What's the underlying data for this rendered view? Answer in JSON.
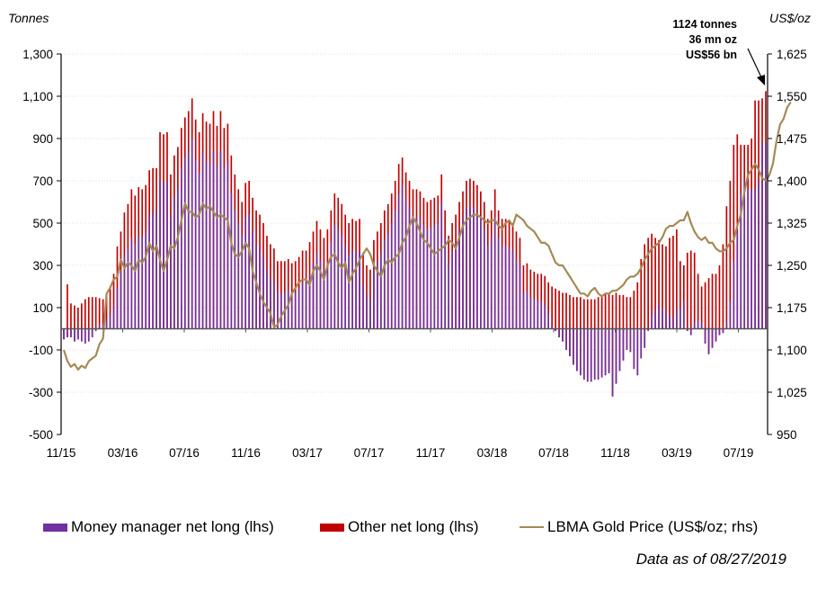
{
  "chart_data": {
    "type": "bar+line",
    "left_unit": "Tonnes",
    "right_unit": "US$/oz",
    "left_ticks": [
      "1,300",
      "1,100",
      "900",
      "700",
      "500",
      "300",
      "100",
      "-100",
      "-300",
      "-500"
    ],
    "right_ticks": [
      "1,625",
      "1,550",
      "1,475",
      "1,400",
      "1,325",
      "1,250",
      "1,175",
      "1,100",
      "1,025",
      "950"
    ],
    "ylim_left": [
      -500,
      1300
    ],
    "ylim_right": [
      950,
      1625
    ],
    "x_ticks": [
      "11/15",
      "03/16",
      "07/16",
      "11/16",
      "03/17",
      "07/17",
      "11/17",
      "03/18",
      "07/18",
      "11/18",
      "03/19",
      "07/19"
    ],
    "annotation": {
      "line1": "1124 tonnes",
      "line2": "36 mn oz",
      "line3": "US$56 bn"
    },
    "series": [
      {
        "name": "Money manager net long (lhs)",
        "color": "#7030a0",
        "kind": "bar",
        "axis": "left"
      },
      {
        "name": "Other net long (lhs)",
        "color": "#c00000",
        "kind": "bar",
        "axis": "left"
      },
      {
        "name": "LBMA Gold Price (US$/oz; rhs)",
        "color": "#a48a56",
        "kind": "line",
        "axis": "right"
      }
    ],
    "total_net_long": [
      -10,
      210,
      120,
      110,
      100,
      120,
      140,
      150,
      150,
      150,
      145,
      140,
      160,
      200,
      260,
      390,
      460,
      550,
      590,
      660,
      630,
      670,
      660,
      680,
      750,
      760,
      760,
      930,
      920,
      930,
      730,
      820,
      860,
      950,
      1000,
      1030,
      1090,
      990,
      930,
      1020,
      980,
      970,
      1030,
      960,
      1030,
      950,
      970,
      820,
      730,
      660,
      600,
      690,
      700,
      620,
      560,
      540,
      500,
      440,
      400,
      380,
      320,
      320,
      320,
      330,
      310,
      320,
      340,
      370,
      370,
      410,
      460,
      510,
      470,
      430,
      470,
      560,
      640,
      620,
      590,
      540,
      500,
      520,
      510,
      520,
      360,
      300,
      280,
      420,
      460,
      500,
      560,
      590,
      640,
      700,
      780,
      810,
      740,
      700,
      660,
      660,
      650,
      620,
      600,
      610,
      620,
      630,
      730,
      560,
      440,
      500,
      540,
      600,
      650,
      700,
      710,
      700,
      680,
      650,
      600,
      520,
      560,
      660,
      560,
      520,
      520,
      510,
      500,
      460,
      430,
      300,
      310,
      280,
      270,
      260,
      260,
      250,
      220,
      200,
      190,
      180,
      170,
      170,
      160,
      150,
      150,
      150,
      140,
      140,
      140,
      140,
      150,
      160,
      170,
      170,
      160,
      170,
      160,
      160,
      150,
      150,
      180,
      220,
      330,
      400,
      430,
      450,
      430,
      420,
      400,
      390,
      430,
      440,
      470,
      320,
      300,
      360,
      370,
      360,
      260,
      200,
      220,
      240,
      260,
      260,
      300,
      400,
      580,
      700,
      870,
      920,
      870,
      870,
      870,
      900,
      1080,
      1080,
      1090,
      1124
    ],
    "money_manager_net_long": [
      -50,
      -40,
      -40,
      -60,
      -50,
      -60,
      -70,
      -60,
      -40,
      -10,
      20,
      20,
      40,
      70,
      110,
      190,
      270,
      340,
      380,
      430,
      400,
      440,
      430,
      460,
      530,
      550,
      560,
      700,
      690,
      700,
      530,
      620,
      660,
      760,
      810,
      840,
      900,
      800,
      740,
      830,
      790,
      780,
      840,
      770,
      840,
      760,
      790,
      640,
      560,
      500,
      440,
      530,
      540,
      460,
      400,
      380,
      340,
      280,
      240,
      220,
      170,
      170,
      170,
      180,
      160,
      170,
      190,
      220,
      220,
      260,
      310,
      360,
      320,
      280,
      320,
      410,
      490,
      470,
      440,
      390,
      350,
      370,
      360,
      370,
      210,
      160,
      140,
      280,
      320,
      360,
      420,
      450,
      500,
      560,
      640,
      680,
      610,
      570,
      530,
      530,
      520,
      490,
      470,
      480,
      490,
      500,
      600,
      430,
      310,
      370,
      410,
      470,
      520,
      570,
      580,
      570,
      550,
      520,
      470,
      390,
      430,
      530,
      430,
      390,
      390,
      380,
      370,
      330,
      300,
      170,
      180,
      150,
      140,
      130,
      130,
      110,
      70,
      10,
      -10,
      -40,
      -60,
      -100,
      -130,
      -170,
      -200,
      -220,
      -240,
      -250,
      -250,
      -240,
      -240,
      -230,
      -220,
      -210,
      -320,
      -260,
      -200,
      -150,
      -100,
      -110,
      -190,
      -220,
      -140,
      -90,
      -10,
      60,
      90,
      110,
      90,
      80,
      60,
      50,
      90,
      100,
      130,
      -10,
      -30,
      30,
      40,
      30,
      -70,
      -120,
      -90,
      -60,
      -30,
      -20,
      30,
      130,
      320,
      460,
      640,
      700,
      660,
      660,
      660,
      690,
      880,
      880,
      890,
      930
    ]
  },
  "lbma_price": [
    1100,
    1080,
    1070,
    1075,
    1065,
    1072,
    1068,
    1080,
    1085,
    1090,
    1110,
    1120,
    1200,
    1210,
    1225,
    1230,
    1260,
    1245,
    1255,
    1250,
    1240,
    1260,
    1255,
    1265,
    1290,
    1275,
    1285,
    1260,
    1240,
    1260,
    1285,
    1280,
    1300,
    1330,
    1360,
    1345,
    1345,
    1335,
    1340,
    1360,
    1350,
    1355,
    1345,
    1335,
    1340,
    1335,
    1330,
    1290,
    1270,
    1265,
    1275,
    1290,
    1280,
    1240,
    1220,
    1200,
    1185,
    1175,
    1165,
    1140,
    1145,
    1160,
    1170,
    1180,
    1200,
    1210,
    1220,
    1225,
    1225,
    1215,
    1240,
    1250,
    1240,
    1225,
    1250,
    1265,
    1270,
    1255,
    1245,
    1255,
    1220,
    1235,
    1245,
    1260,
    1270,
    1280,
    1270,
    1250,
    1240,
    1230,
    1250,
    1260,
    1255,
    1265,
    1270,
    1290,
    1300,
    1320,
    1335,
    1325,
    1310,
    1295,
    1290,
    1280,
    1270,
    1275,
    1280,
    1285,
    1295,
    1290,
    1280,
    1300,
    1320,
    1330,
    1335,
    1340,
    1340,
    1335,
    1330,
    1325,
    1330,
    1330,
    1320,
    1315,
    1325,
    1330,
    1320,
    1340,
    1335,
    1330,
    1320,
    1315,
    1310,
    1300,
    1290,
    1290,
    1285,
    1270,
    1255,
    1250,
    1250,
    1240,
    1230,
    1220,
    1210,
    1200,
    1200,
    1195,
    1205,
    1210,
    1200,
    1195,
    1200,
    1200,
    1205,
    1205,
    1210,
    1215,
    1225,
    1230,
    1230,
    1235,
    1245,
    1260,
    1270,
    1280,
    1285,
    1290,
    1300,
    1315,
    1320,
    1320,
    1325,
    1330,
    1330,
    1345,
    1325,
    1310,
    1300,
    1295,
    1300,
    1290,
    1290,
    1280,
    1275,
    1275,
    1280,
    1290,
    1295,
    1320,
    1340,
    1380,
    1410,
    1420,
    1430,
    1420,
    1405,
    1400,
    1410,
    1430,
    1470,
    1500,
    1510,
    1530,
    1540
  ],
  "legend": {
    "money_manager": "Money manager net long (lhs)",
    "other": "Other net long (lhs)",
    "gold_price": "LBMA Gold Price (US$/oz; rhs)"
  },
  "footnote": "Data as of 08/27/2019",
  "colors": {
    "money_manager": "#7030a0",
    "other": "#c00000",
    "gold_line": "#a48a56",
    "axis": "#000000",
    "grid": "#bfbfbf"
  }
}
